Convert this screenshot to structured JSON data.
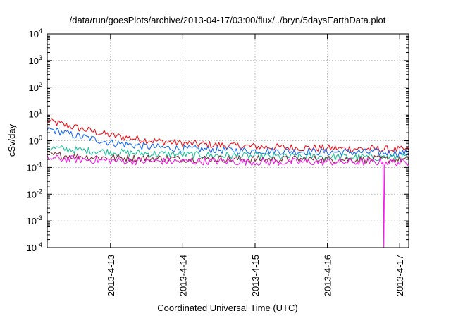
{
  "chart_data": {
    "type": "line",
    "title": "/data/run/goesPlots/archive/2013-04-17/03:00/flux/../bryn/5daysEarthData.plot",
    "xlabel": "Coordinated Universal Time (UTC)",
    "ylabel": "cSv/day",
    "yscale": "log",
    "ylim": [
      0.0001,
      10000
    ],
    "xlim": [
      "2013-04-12T03:00",
      "2013-04-17T03:00"
    ],
    "grid": true,
    "legend": "none",
    "y_ticks": [
      {
        "base": "10",
        "exp": "-4",
        "value": 0.0001
      },
      {
        "base": "10",
        "exp": "-3",
        "value": 0.001
      },
      {
        "base": "10",
        "exp": "-2",
        "value": 0.01
      },
      {
        "base": "10",
        "exp": "-1",
        "value": 0.1
      },
      {
        "base": "10",
        "exp": "0",
        "value": 1
      },
      {
        "base": "10",
        "exp": "1",
        "value": 10
      },
      {
        "base": "10",
        "exp": "2",
        "value": 100
      },
      {
        "base": "10",
        "exp": "3",
        "value": 1000
      },
      {
        "base": "10",
        "exp": "4",
        "value": 10000
      }
    ],
    "x_ticks": [
      {
        "label": "2013-4-13",
        "value": "2013-04-13T00:00"
      },
      {
        "label": "2013-4-14",
        "value": "2013-04-14T00:00"
      },
      {
        "label": "2013-4-15",
        "value": "2013-04-15T00:00"
      },
      {
        "label": "2013-4-16",
        "value": "2013-04-16T00:00"
      },
      {
        "label": "2013-4-17",
        "value": "2013-04-17T00:00"
      }
    ],
    "series": [
      {
        "color": "#e8141c",
        "x": [
          "2013-04-12T03:00",
          "2013-04-12T12:00",
          "2013-04-13T00:00",
          "2013-04-13T12:00",
          "2013-04-14T00:00",
          "2013-04-14T12:00",
          "2013-04-15T00:00",
          "2013-04-15T12:00",
          "2013-04-16T00:00",
          "2013-04-16T12:00",
          "2013-04-17T00:00",
          "2013-04-17T03:00"
        ],
        "y": [
          5.5,
          3.2,
          1.6,
          1.05,
          0.8,
          0.68,
          0.6,
          0.55,
          0.52,
          0.5,
          0.46,
          0.45
        ]
      },
      {
        "color": "#1a6cf0",
        "x": [
          "2013-04-12T03:00",
          "2013-04-12T12:00",
          "2013-04-13T00:00",
          "2013-04-13T12:00",
          "2013-04-14T00:00",
          "2013-04-14T12:00",
          "2013-04-15T00:00",
          "2013-04-15T12:00",
          "2013-04-16T00:00",
          "2013-04-16T12:00",
          "2013-04-17T00:00",
          "2013-04-17T03:00"
        ],
        "y": [
          2.8,
          1.6,
          0.85,
          0.6,
          0.5,
          0.45,
          0.42,
          0.4,
          0.38,
          0.37,
          0.35,
          0.34
        ]
      },
      {
        "color": "#1fbf9a",
        "x": [
          "2013-04-12T03:00",
          "2013-04-12T12:00",
          "2013-04-13T00:00",
          "2013-04-13T12:00",
          "2013-04-14T00:00",
          "2013-04-14T12:00",
          "2013-04-15T00:00",
          "2013-04-15T12:00",
          "2013-04-16T00:00",
          "2013-04-16T12:00",
          "2013-04-17T00:00",
          "2013-04-17T03:00"
        ],
        "y": [
          0.55,
          0.45,
          0.38,
          0.33,
          0.3,
          0.28,
          0.26,
          0.25,
          0.25,
          0.24,
          0.24,
          0.24
        ]
      },
      {
        "color": "#7a2f3a",
        "x": [
          "2013-04-12T03:00",
          "2013-04-12T12:00",
          "2013-04-13T00:00",
          "2013-04-13T12:00",
          "2013-04-14T00:00",
          "2013-04-14T12:00",
          "2013-04-15T00:00",
          "2013-04-15T12:00",
          "2013-04-16T00:00",
          "2013-04-16T12:00",
          "2013-04-17T00:00",
          "2013-04-17T03:00"
        ],
        "y": [
          0.3,
          0.26,
          0.23,
          0.22,
          0.21,
          0.21,
          0.2,
          0.2,
          0.2,
          0.2,
          0.2,
          0.2
        ]
      },
      {
        "color": "#f01ee6",
        "x": [
          "2013-04-12T03:00",
          "2013-04-12T12:00",
          "2013-04-13T00:00",
          "2013-04-13T12:00",
          "2013-04-14T00:00",
          "2013-04-14T12:00",
          "2013-04-15T00:00",
          "2013-04-15T12:00",
          "2013-04-16T00:00",
          "2013-04-16T12:00",
          "2013-04-16T18:30",
          "2013-04-16T18:45",
          "2013-04-16T19:00",
          "2013-04-17T00:00",
          "2013-04-17T03:00"
        ],
        "y": [
          0.22,
          0.2,
          0.18,
          0.17,
          0.17,
          0.17,
          0.16,
          0.16,
          0.16,
          0.16,
          0.16,
          0.0001,
          0.16,
          0.15,
          0.15
        ]
      }
    ]
  }
}
